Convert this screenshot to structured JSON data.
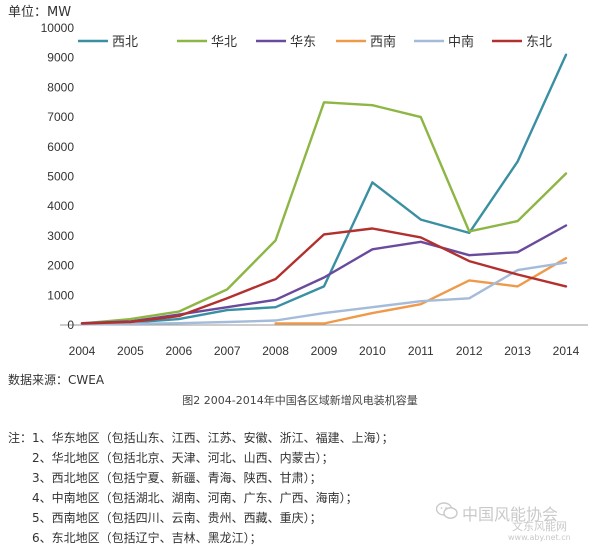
{
  "unit_label": "单位：MW",
  "source_label": "数据来源：CWEA",
  "caption": "图2 2004-2014年中国各区域新增风电装机容量",
  "notes": {
    "prefix": "注：",
    "items": [
      "1、华东地区（包括山东、江西、江苏、安徽、浙江、福建、上海）；",
      "2、华北地区（包括北京、天津、河北、山西、内蒙古）；",
      "3、西北地区（包括宁夏、新疆、青海、陕西、甘肃）；",
      "4、中南地区（包括湖北、湖南、河南、广东、广西、海南）；",
      "5、西南地区（包括四川、云南、贵州、西藏、重庆）；",
      "6、东北地区（包括辽宁、吉林、黑龙江）；"
    ]
  },
  "watermark": {
    "text": "中国风能协会",
    "text2": "文东风能网",
    "url": "www.aby.net.cn"
  },
  "chart_data": {
    "type": "line",
    "title": "",
    "xlabel": "",
    "ylabel": "单位：MW",
    "x": [
      2004,
      2005,
      2006,
      2007,
      2008,
      2009,
      2010,
      2011,
      2012,
      2013,
      2014
    ],
    "ylim": [
      0,
      10000
    ],
    "yticks": [
      0,
      1000,
      2000,
      3000,
      4000,
      5000,
      6000,
      7000,
      8000,
      9000,
      10000
    ],
    "grid": false,
    "legend_position": "top",
    "series": [
      {
        "name": "西北",
        "color": "#3a8fa3",
        "values": [
          40,
          80,
          200,
          500,
          600,
          1300,
          4800,
          3550,
          3100,
          5500,
          9100
        ]
      },
      {
        "name": "华北",
        "color": "#8db645",
        "values": [
          50,
          200,
          450,
          1200,
          2850,
          7500,
          7400,
          7000,
          3150,
          3500,
          5100
        ]
      },
      {
        "name": "华东",
        "color": "#6a4a9c",
        "values": [
          60,
          120,
          350,
          600,
          850,
          1600,
          2550,
          2800,
          2350,
          2450,
          3350
        ]
      },
      {
        "name": "西南",
        "color": "#ee9a4a",
        "values": [
          null,
          null,
          null,
          null,
          50,
          50,
          400,
          700,
          1500,
          1300,
          2250
        ]
      },
      {
        "name": "中南",
        "color": "#a4bcd9",
        "values": [
          20,
          40,
          60,
          100,
          150,
          400,
          600,
          800,
          900,
          1850,
          2100
        ]
      },
      {
        "name": "东北",
        "color": "#b2302e",
        "values": [
          50,
          100,
          300,
          900,
          1550,
          3050,
          3250,
          2950,
          2150,
          1700,
          1300
        ]
      }
    ]
  }
}
